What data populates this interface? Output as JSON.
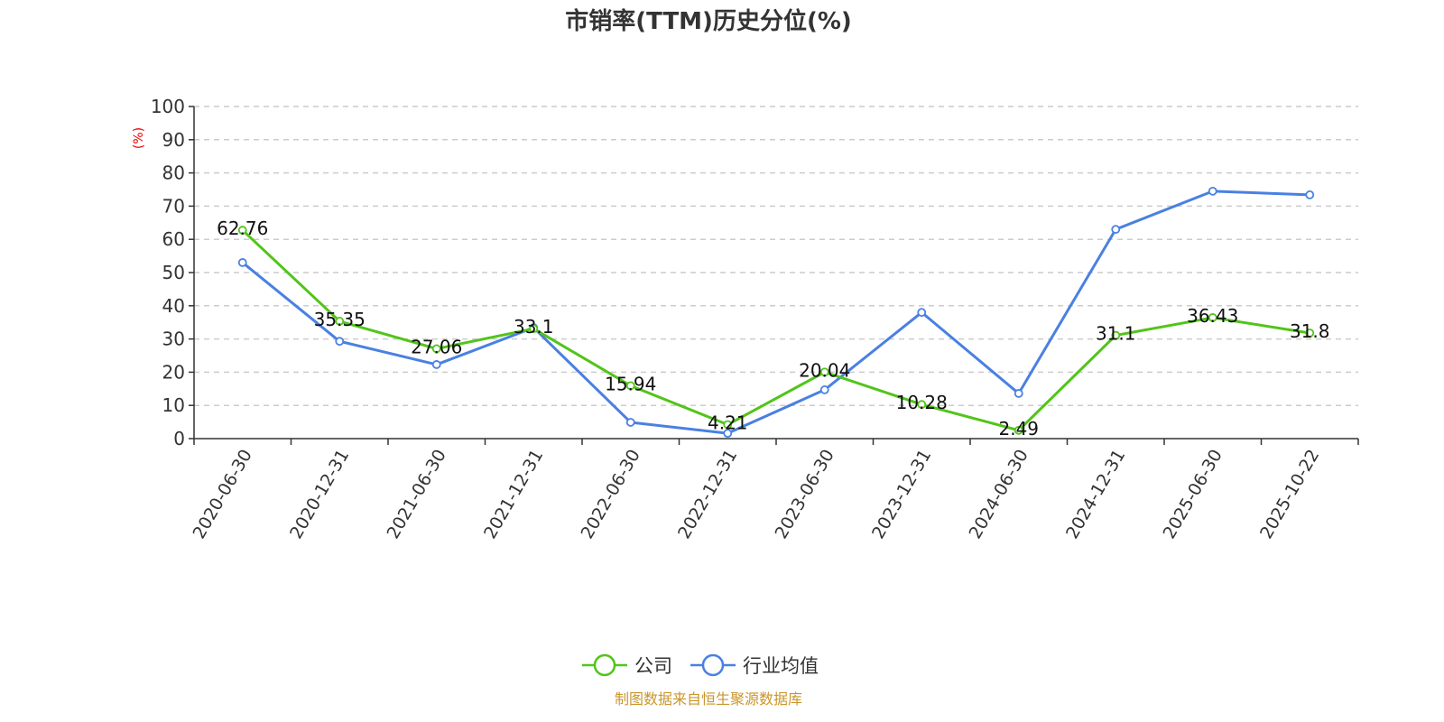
{
  "chart_data": {
    "type": "line",
    "title": "市销率(TTM)历史分位(%)",
    "ylabel": "(%)",
    "xlabel": "",
    "ylim": [
      0,
      100
    ],
    "yticks": [
      0,
      10,
      20,
      30,
      40,
      50,
      60,
      70,
      80,
      90,
      100
    ],
    "grid": true,
    "legend_position": "bottom",
    "categories": [
      "2020-06-30",
      "2020-12-31",
      "2021-06-30",
      "2021-12-31",
      "2022-06-30",
      "2022-12-31",
      "2023-06-30",
      "2023-12-31",
      "2024-06-30",
      "2024-12-31",
      "2025-06-30",
      "2025-10-22"
    ],
    "series": [
      {
        "name": "公司",
        "color": "#52c41a",
        "show_labels": true,
        "values": [
          62.76,
          35.35,
          27.06,
          33.1,
          15.94,
          4.21,
          20.04,
          10.28,
          2.49,
          31.1,
          36.43,
          31.8
        ]
      },
      {
        "name": "行业均值",
        "color": "#4a80e2",
        "show_labels": false,
        "values": [
          53.0,
          29.3,
          22.3,
          33.4,
          4.9,
          1.6,
          14.7,
          38.0,
          13.6,
          63.0,
          74.5,
          73.4
        ]
      }
    ],
    "source": "制图数据来自恒生聚源数据库"
  }
}
